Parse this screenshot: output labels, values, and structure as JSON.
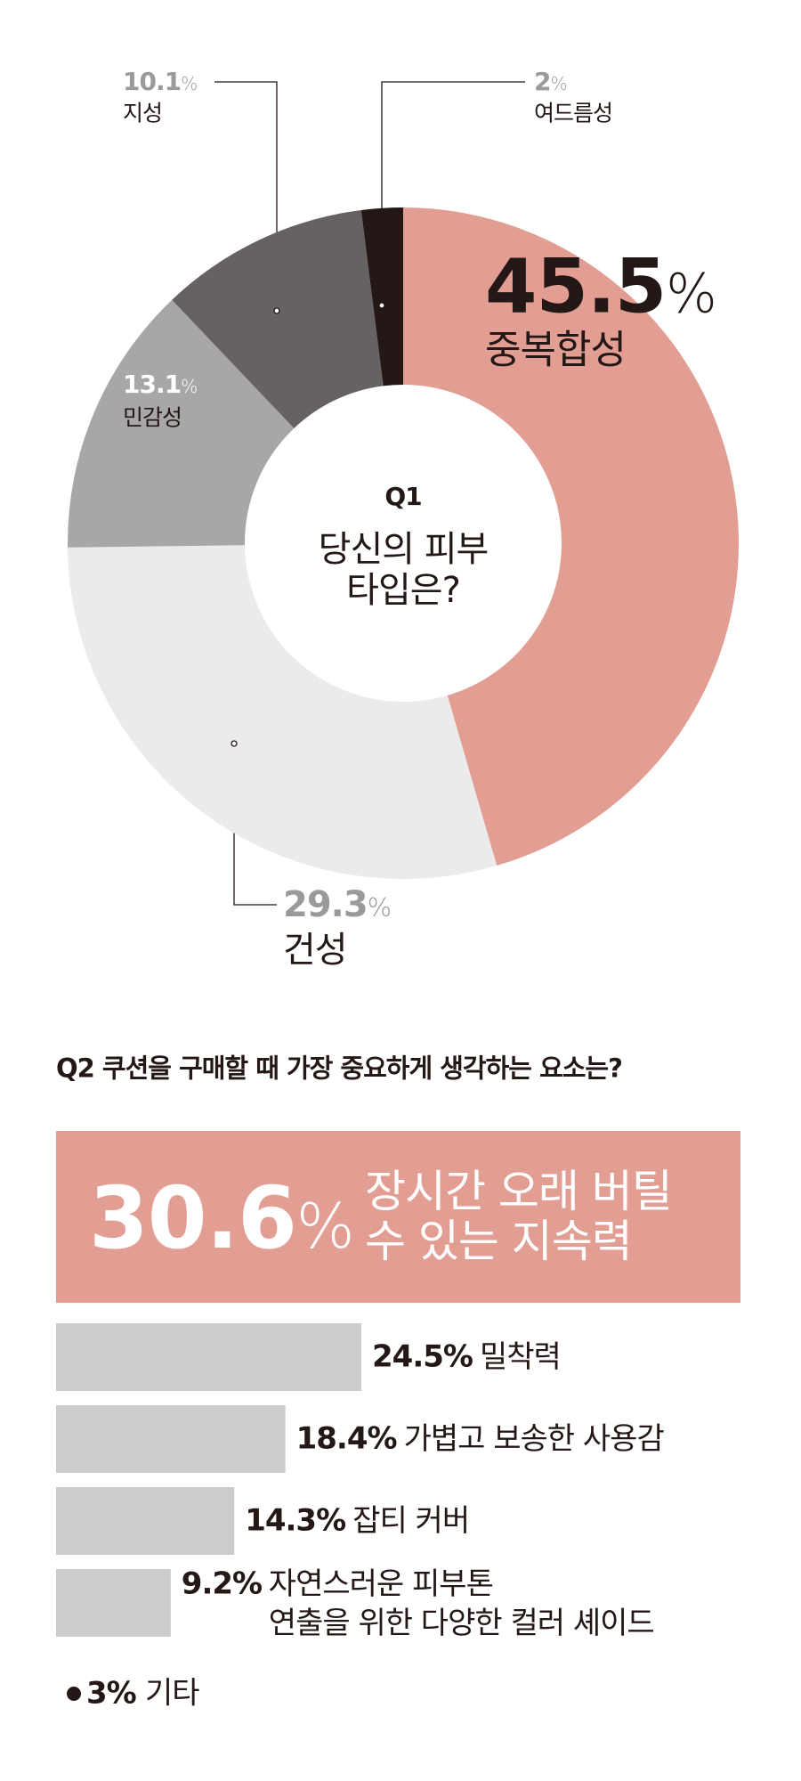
{
  "chart_data": [
    {
      "type": "pie",
      "title": "Q1",
      "subtitle": "당신의 피부\n타입은?",
      "categories": [
        "중복합성",
        "건성",
        "민감성",
        "지성",
        "여드름성"
      ],
      "values": [
        45.5,
        29.3,
        13.1,
        10.1,
        2
      ],
      "value_labels": [
        "45.5%",
        "29.3%",
        "13.1%",
        "10.1%",
        "2%"
      ],
      "colors": [
        "#e39e94",
        "#ebebeb",
        "#a7a7a7",
        "#666263",
        "#231815"
      ]
    },
    {
      "type": "bar",
      "title": "Q2 쿠션을 구매할 때 가장 중요하게 생각하는 요소는?",
      "categories": [
        "장시간 오래 버틸\n수 있는 지속력",
        "밀착력",
        "가볍고 보송한 사용감",
        "잡티 커버",
        "자연스러운 피부톤\n연출을 위한 다양한 컬러 셰이드",
        "기타"
      ],
      "values": [
        30.6,
        24.5,
        18.4,
        14.3,
        9.2,
        3
      ],
      "value_labels": [
        "30.6%",
        "24.5%",
        "18.4%",
        "14.3%",
        "9.2%",
        "3%"
      ],
      "color": "#cccccc",
      "highlight": 0,
      "highlight_color": "#e39e94"
    }
  ]
}
